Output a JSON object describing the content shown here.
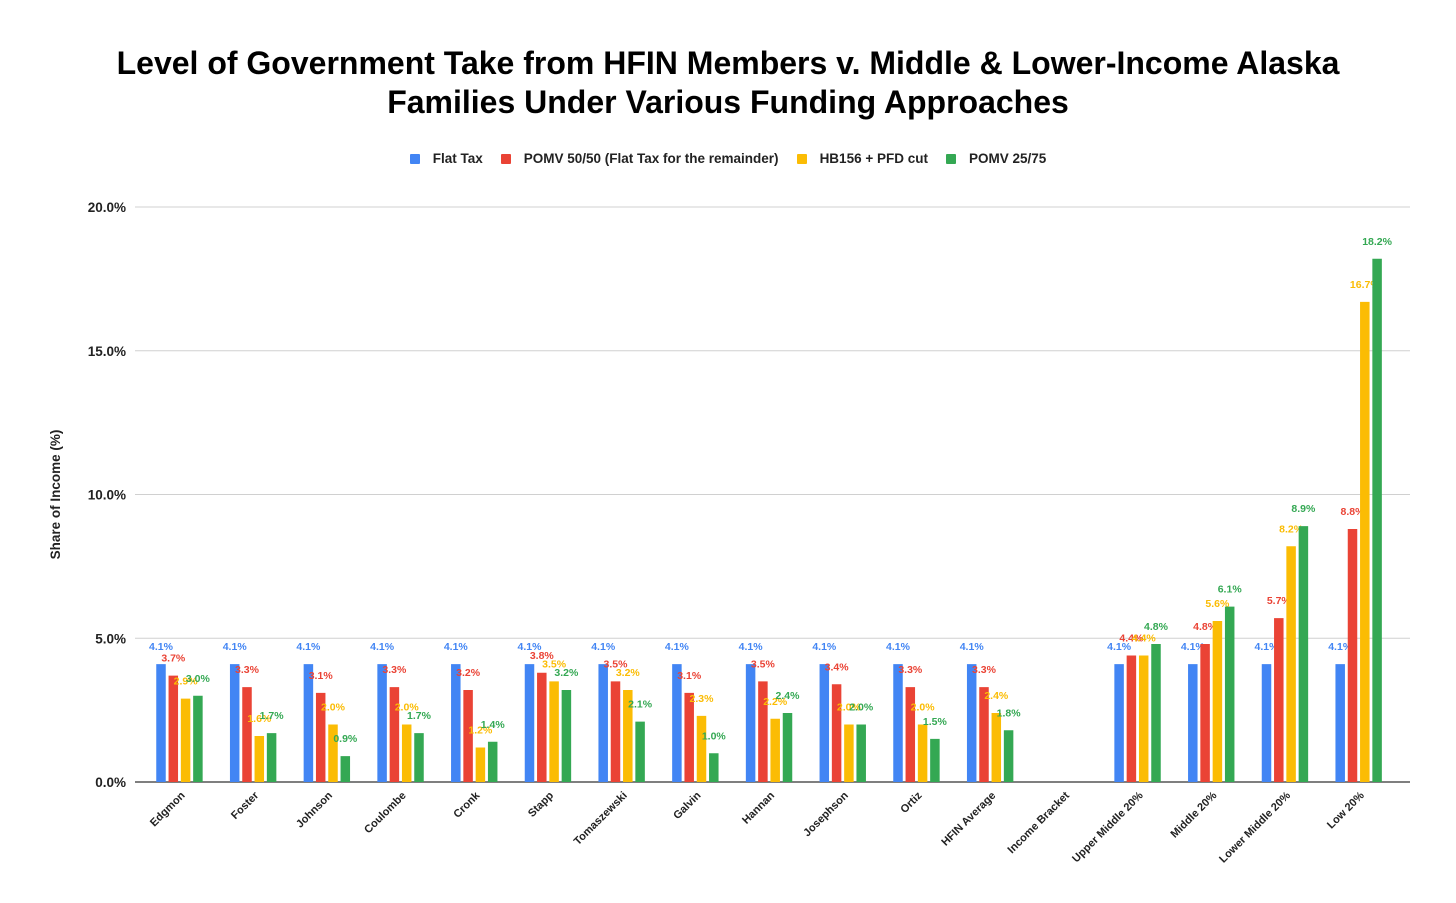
{
  "chart_data": {
    "type": "bar",
    "title": "Level of Government Take from HFIN Members v. Middle & Lower-Income Alaska Families Under Various Funding Approaches",
    "title_lines": [
      "Level of Government Take from HFIN Members v. Middle & Lower-Income Alaska",
      "Families Under Various Funding Approaches"
    ],
    "xlabel": "",
    "ylabel": "Share of Income (%)",
    "ylim": [
      0,
      20
    ],
    "yticks": [
      "0.0%",
      "5.0%",
      "10.0%",
      "15.0%",
      "20.0%"
    ],
    "ytick_values": [
      0,
      5,
      10,
      15,
      20
    ],
    "grid": true,
    "legend_position": "top",
    "categories": [
      "Edgmon",
      "Foster",
      "Johnson",
      "Coulombe",
      "Cronk",
      "Stapp",
      "Tomaszewski",
      "Galvin",
      "Hannan",
      "Josephson",
      "Ortiz",
      "HFIN Average",
      "Income Bracket",
      "Upper Middle 20%",
      "Middle 20%",
      "Lower Middle 20%",
      "Low 20%"
    ],
    "series": [
      {
        "name": "Flat Tax",
        "color": "#4285f4",
        "values": [
          4.1,
          4.1,
          4.1,
          4.1,
          4.1,
          4.1,
          4.1,
          4.1,
          4.1,
          4.1,
          4.1,
          4.1,
          null,
          4.1,
          4.1,
          4.1,
          4.1
        ],
        "labels": [
          "4.1%",
          "4.1%",
          "4.1%",
          "4.1%",
          "4.1%",
          "4.1%",
          "4.1%",
          "4.1%",
          "4.1%",
          "4.1%",
          "4.1%",
          "4.1%",
          "",
          "4.1%",
          "4.1%",
          "4.1%",
          "4.1%"
        ]
      },
      {
        "name": "POMV 50/50 (Flat Tax for the remainder)",
        "color": "#ea4335",
        "values": [
          3.7,
          3.3,
          3.1,
          3.3,
          3.2,
          3.8,
          3.5,
          3.1,
          3.5,
          3.4,
          3.3,
          3.3,
          null,
          4.4,
          4.8,
          5.7,
          8.8
        ],
        "labels": [
          "3.7%",
          "3.3%",
          "3.1%",
          "3.3%",
          "3.2%",
          "3.8%",
          "3.5%",
          "3.1%",
          "3.5%",
          "3.4%",
          "3.3%",
          "3.3%",
          "",
          "4.4%",
          "4.8%",
          "5.7%",
          "8.8%"
        ]
      },
      {
        "name": "HB156 + PFD cut",
        "color": "#fbbc04",
        "values": [
          2.9,
          1.6,
          2.0,
          2.0,
          1.2,
          3.5,
          3.2,
          2.3,
          2.2,
          2.0,
          2.0,
          2.4,
          null,
          4.4,
          5.6,
          8.2,
          16.7
        ],
        "labels": [
          "2.9%",
          "1.6%",
          "2.0%",
          "2.0%",
          "1.2%",
          "3.5%",
          "3.2%",
          "2.3%",
          "2.2%",
          "2.0%",
          "2.0%",
          "2.4%",
          "",
          "4.4%",
          "5.6%",
          "8.2%",
          "16.7%"
        ]
      },
      {
        "name": "POMV 25/75",
        "color": "#34a853",
        "values": [
          3.0,
          1.7,
          0.9,
          1.7,
          1.4,
          3.2,
          2.1,
          1.0,
          2.4,
          2.0,
          1.5,
          1.8,
          null,
          4.8,
          6.1,
          8.9,
          18.2
        ],
        "labels": [
          "3.0%",
          "1.7%",
          "0.9%",
          "1.7%",
          "1.4%",
          "3.2%",
          "2.1%",
          "1.0%",
          "2.4%",
          "2.0%",
          "1.5%",
          "1.8%",
          "",
          "4.8%",
          "6.1%",
          "8.9%",
          "18.2%"
        ]
      }
    ]
  }
}
